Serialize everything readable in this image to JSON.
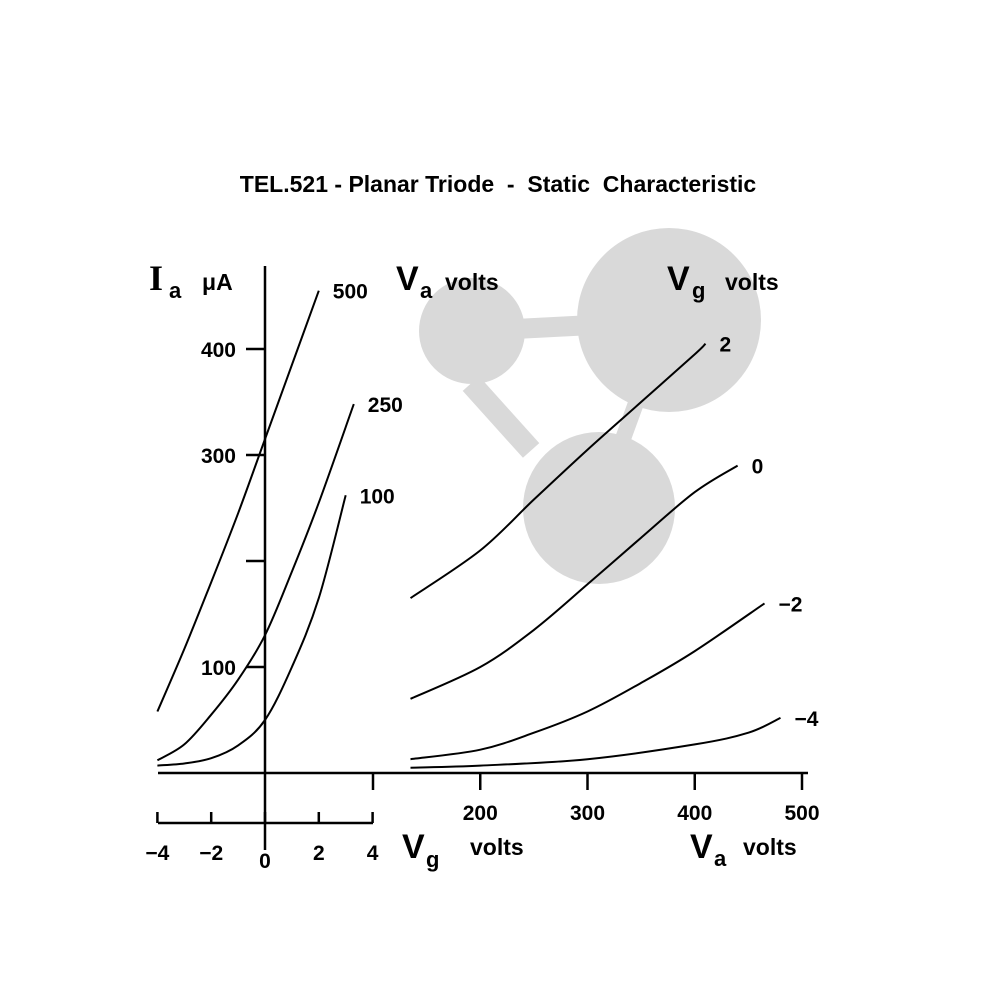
{
  "colors": {
    "curve": "#000000",
    "watermark": "#d9d9d9",
    "background": "#ffffff"
  },
  "chart_data": [
    {
      "type": "line",
      "title": "TEL.521 - Planar Triode  -  Static  Characteristic",
      "xlabel": {
        "symbol": "V",
        "sub": "g",
        "unit": "volts"
      },
      "ylabel": {
        "symbol": "I",
        "sub": "a",
        "unit": "μA"
      },
      "legend_header": {
        "symbol": "V",
        "sub": "a",
        "unit": "volts"
      },
      "xlim": [
        -4,
        4
      ],
      "ylim": [
        0,
        470
      ],
      "x_ticks": [
        -4,
        -2,
        0,
        2,
        4
      ],
      "x_tick_labels": [
        "−4",
        "−2",
        "0",
        "2",
        "4"
      ],
      "y_ticks": [
        100,
        200,
        300,
        400
      ],
      "y_tick_labels": [
        "100",
        "",
        "300",
        "400"
      ],
      "grid": false,
      "series": [
        {
          "name": "500",
          "x": [
            -4,
            -3,
            -2,
            -1,
            0,
            1,
            2
          ],
          "y": [
            58,
            117,
            180,
            245,
            315,
            385,
            455
          ]
        },
        {
          "name": "250",
          "x": [
            -4,
            -3,
            -2,
            -1,
            0,
            1,
            2,
            3.3
          ],
          "y": [
            12,
            27,
            55,
            88,
            130,
            190,
            255,
            348
          ]
        },
        {
          "name": "100",
          "x": [
            -4,
            -3,
            -2,
            -1,
            0,
            1,
            2,
            3
          ],
          "y": [
            7,
            9,
            14,
            26,
            50,
            100,
            165,
            262
          ]
        }
      ]
    },
    {
      "type": "line",
      "xlabel": {
        "symbol": "V",
        "sub": "a",
        "unit": "volts"
      },
      "legend_header": {
        "symbol": "V",
        "sub": "g",
        "unit": "volts"
      },
      "xlim": [
        100,
        500
      ],
      "ylim": [
        0,
        470
      ],
      "x_ticks": [
        100,
        200,
        300,
        400,
        500
      ],
      "x_tick_labels": [
        "",
        "200",
        "300",
        "400",
        "500"
      ],
      "grid": false,
      "series": [
        {
          "name": "2",
          "x": [
            135,
            200,
            250,
            300,
            350,
            400,
            410
          ],
          "y": [
            165,
            210,
            258,
            305,
            350,
            395,
            405
          ]
        },
        {
          "name": "0",
          "x": [
            135,
            200,
            250,
            300,
            350,
            400,
            440
          ],
          "y": [
            70,
            100,
            135,
            178,
            222,
            265,
            290
          ]
        },
        {
          "name": "−2",
          "x": [
            135,
            200,
            250,
            300,
            350,
            400,
            465
          ],
          "y": [
            13,
            22,
            38,
            58,
            85,
            115,
            160
          ]
        },
        {
          "name": "−4",
          "x": [
            135,
            200,
            300,
            400,
            450,
            480
          ],
          "y": [
            5,
            7,
            13,
            27,
            38,
            52
          ]
        }
      ]
    }
  ]
}
